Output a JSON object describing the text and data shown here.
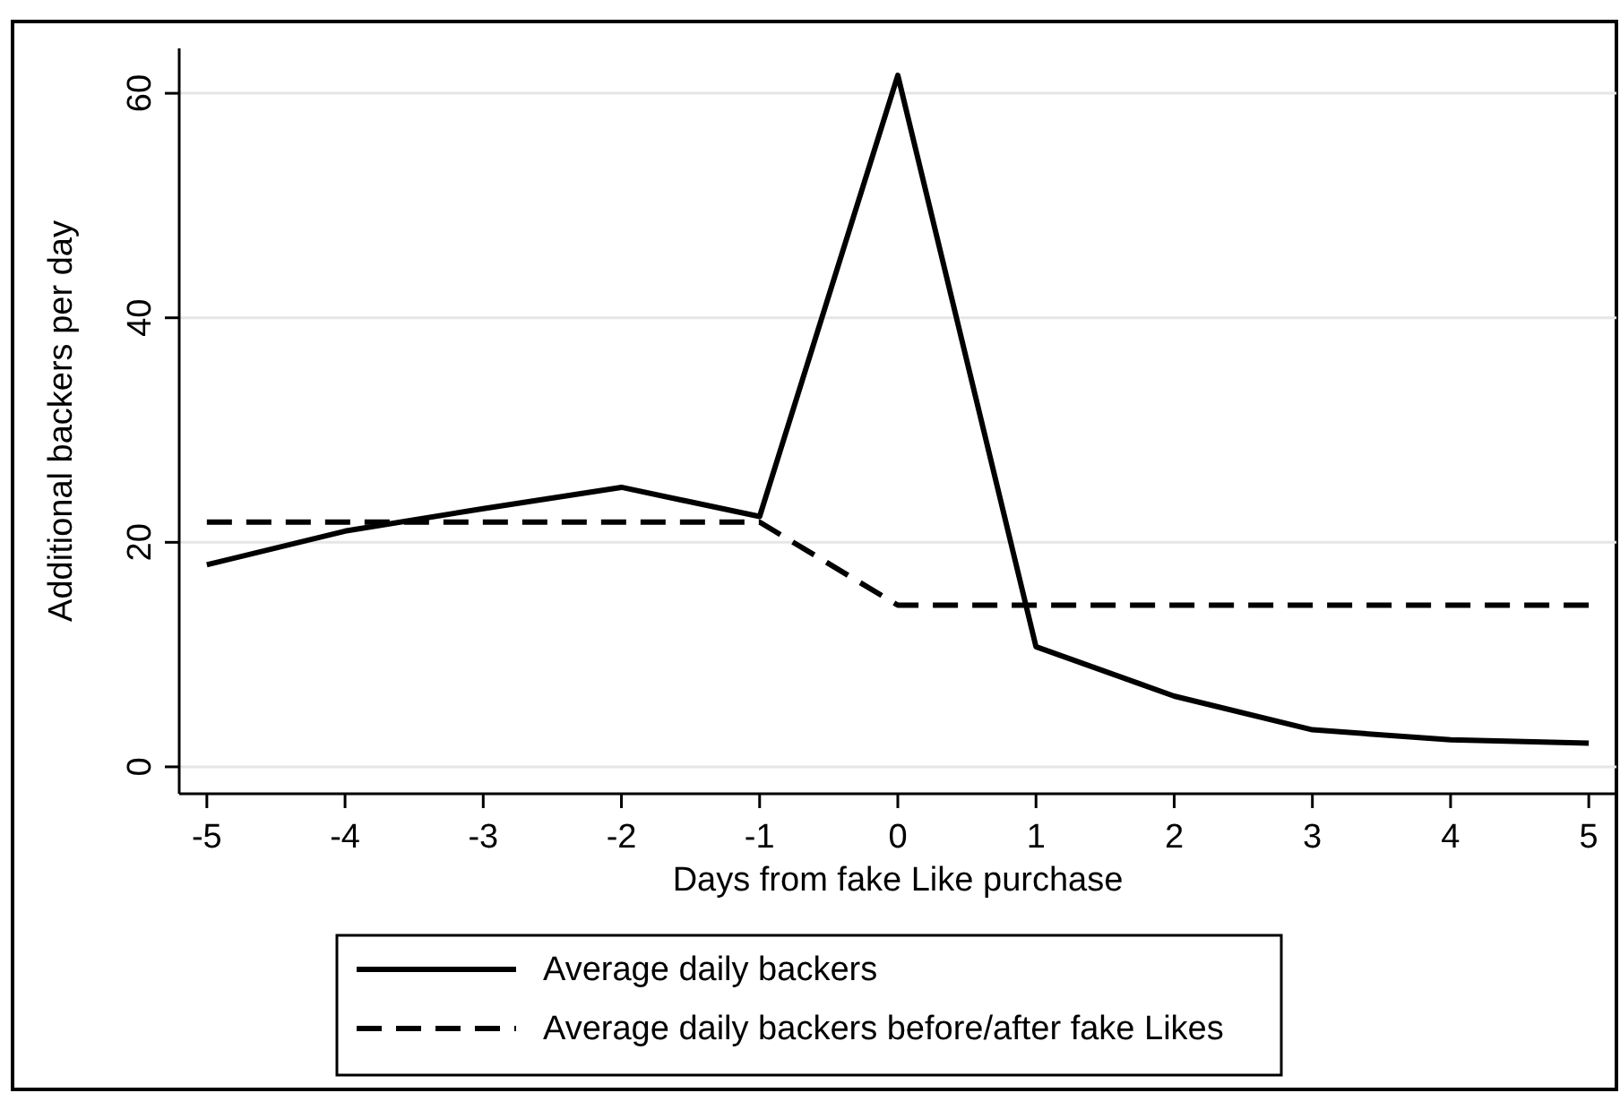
{
  "chart_data": {
    "type": "line",
    "xlabel": "Days from fake Like purchase",
    "ylabel": "Additional backers per day",
    "x": [
      -5,
      -4,
      -3,
      -2,
      -1,
      0,
      1,
      2,
      3,
      4,
      5
    ],
    "series": [
      {
        "name": "Average daily backers",
        "color": "#000000",
        "line_style": "solid",
        "values": [
          18.0,
          21.0,
          23.0,
          24.9,
          22.3,
          61.6,
          10.7,
          6.3,
          3.3,
          2.4,
          2.1
        ]
      },
      {
        "name": "Average daily backers before/after fake Likes",
        "color": "#000000",
        "line_style": "dashed",
        "values": [
          21.8,
          21.8,
          21.8,
          21.8,
          21.8,
          14.4,
          14.4,
          14.4,
          14.4,
          14.4,
          14.4
        ]
      }
    ],
    "xlim": [
      -5.2,
      5.2
    ],
    "xticks": [
      -5,
      -4,
      -3,
      -2,
      -1,
      0,
      1,
      2,
      3,
      4,
      5
    ],
    "ylim": [
      -2.4,
      64
    ],
    "yticks": [
      0,
      20,
      40,
      60
    ],
    "grid": "y",
    "legend": "bottom",
    "marker": "none"
  }
}
